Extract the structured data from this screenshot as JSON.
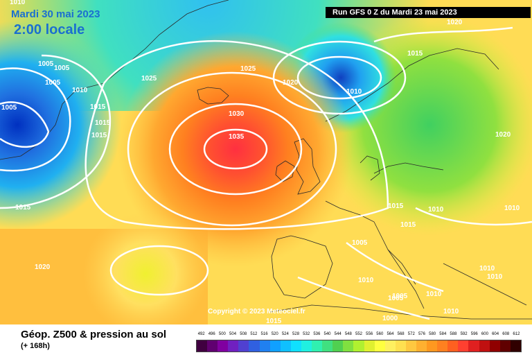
{
  "header": {
    "date": "Mardi 30 mai 2023",
    "local_time": "2:00 locale",
    "run_info": "Run GFS 0 Z du Mardi 23 mai 2023"
  },
  "footer": {
    "title": "Géop. Z500 & pression au sol",
    "lead_time": "(+ 168h)",
    "copyright": "Copyright © 2023 Meteociel.fr"
  },
  "isobar_labels": [
    "1010",
    "1005",
    "1005",
    "1005",
    "1005",
    "1010",
    "1015",
    "1015",
    "1015",
    "1025",
    "1025",
    "1020",
    "1015",
    "1020",
    "1010",
    "1030",
    "1035",
    "1015",
    "1020",
    "1015",
    "1015",
    "1005",
    "1010",
    "1010",
    "1010",
    "1010",
    "1010",
    "1005",
    "1010",
    "1005",
    "1010",
    "1000",
    "1020",
    "1015"
  ],
  "scale": {
    "values": [
      "492",
      "496",
      "500",
      "504",
      "508",
      "512",
      "516",
      "520",
      "524",
      "528",
      "532",
      "536",
      "540",
      "544",
      "548",
      "552",
      "556",
      "560",
      "564",
      "568",
      "572",
      "576",
      "580",
      "584",
      "588",
      "592",
      "596",
      "600",
      "604",
      "608",
      "612"
    ],
    "colors": [
      "#400040",
      "#600070",
      "#8000a0",
      "#7020c0",
      "#5040d0",
      "#3060e0",
      "#2080f0",
      "#10a0ff",
      "#10c0ff",
      "#10e0ff",
      "#20f0e0",
      "#30f0b0",
      "#40e080",
      "#50d050",
      "#80e040",
      "#b0f030",
      "#e0f030",
      "#ffff40",
      "#fff060",
      "#ffe050",
      "#ffc840",
      "#ffb030",
      "#ff9820",
      "#ff8020",
      "#ff6020",
      "#ff4030",
      "#e02020",
      "#c01010",
      "#900000",
      "#600000",
      "#300000"
    ]
  }
}
